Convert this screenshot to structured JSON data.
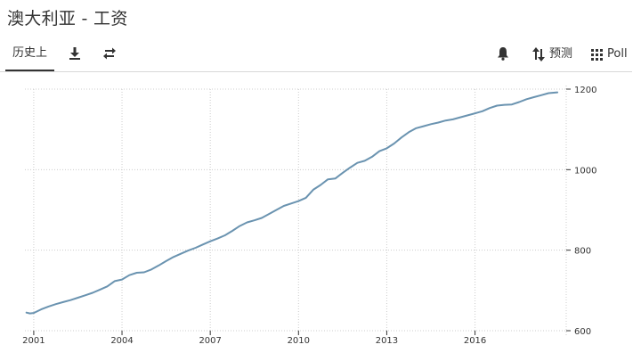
{
  "title": "澳大利亚 - 工资",
  "toolbar": {
    "history_tab": "历史上",
    "forecast_label": "预测",
    "poll_label": "Poll"
  },
  "icons": {
    "download": "download-icon",
    "compare": "swap-arrows-icon",
    "alert": "bell-icon",
    "forecast": "sort-arrows-icon",
    "poll": "grid-icon"
  },
  "colors": {
    "line": "#6a93b0",
    "grid": "#cccccc",
    "axis": "#333333"
  },
  "chart_data": {
    "type": "line",
    "title": "",
    "xlabel": "",
    "ylabel": "",
    "xlim": [
      2000.7,
      2019.1
    ],
    "ylim": [
      600,
      1200
    ],
    "y_ticks": [
      600,
      800,
      1000,
      1200
    ],
    "x_ticks": [
      2001,
      2004,
      2007,
      2010,
      2013,
      2016
    ],
    "y_axis_position": "right",
    "grid": "dotted",
    "series": [
      {
        "x": [
          2000.75,
          2000.87,
          2001.0,
          2001.25,
          2001.5,
          2001.75,
          2002.0,
          2002.25,
          2002.5,
          2002.75,
          2003.0,
          2003.25,
          2003.5,
          2003.75,
          2004.0,
          2004.25,
          2004.5,
          2004.75,
          2005.0,
          2005.25,
          2005.5,
          2005.75,
          2006.0,
          2006.25,
          2006.5,
          2006.75,
          2007.0,
          2007.25,
          2007.5,
          2007.75,
          2008.0,
          2008.25,
          2008.5,
          2008.75,
          2009.0,
          2009.25,
          2009.5,
          2009.75,
          2010.0,
          2010.25,
          2010.5,
          2010.75,
          2011.0,
          2011.25,
          2011.5,
          2011.75,
          2012.0,
          2012.25,
          2012.5,
          2012.75,
          2013.0,
          2013.25,
          2013.5,
          2013.75,
          2014.0,
          2014.25,
          2014.5,
          2014.75,
          2015.0,
          2015.25,
          2015.5,
          2015.75,
          2016.0,
          2016.25,
          2016.5,
          2016.75,
          2017.0,
          2017.25,
          2017.5,
          2017.75,
          2018.0,
          2018.25,
          2018.5,
          2018.8
        ],
        "values": [
          645,
          643,
          644,
          653,
          660,
          666,
          671,
          676,
          682,
          688,
          694,
          702,
          710,
          723,
          727,
          738,
          744,
          745,
          752,
          762,
          773,
          783,
          791,
          799,
          806,
          814,
          822,
          829,
          837,
          848,
          860,
          869,
          874,
          880,
          890,
          900,
          910,
          916,
          922,
          930,
          950,
          962,
          976,
          978,
          992,
          1005,
          1017,
          1022,
          1032,
          1046,
          1053,
          1065,
          1080,
          1093,
          1103,
          1108,
          1113,
          1117,
          1122,
          1125,
          1130,
          1135,
          1140,
          1145,
          1153,
          1159,
          1161,
          1162,
          1168,
          1175,
          1180,
          1185,
          1190,
          1192
        ]
      }
    ]
  }
}
